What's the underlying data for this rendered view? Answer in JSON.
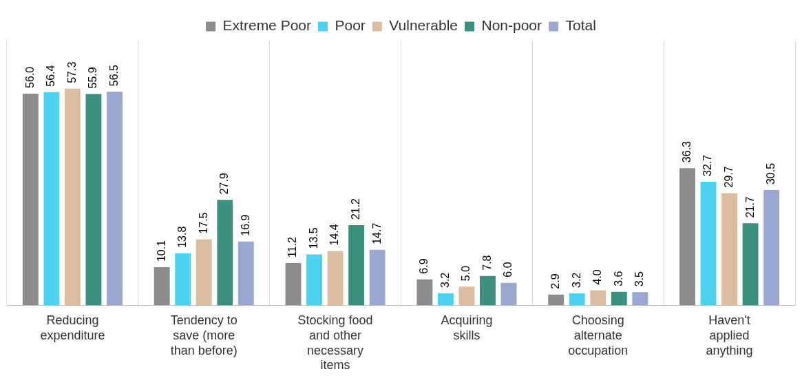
{
  "chart_data": {
    "type": "bar",
    "categories": [
      "Reducing expenditure",
      "Tendency to save (more than before)",
      "Stocking food and other necessary items",
      "Acquiring skills",
      "Choosing alternate occupation",
      "Haven't applied anything"
    ],
    "series": [
      {
        "name": "Extreme Poor",
        "color": "#8c8c8c",
        "values": [
          56.0,
          10.1,
          11.2,
          6.9,
          2.9,
          36.3
        ],
        "value_labels": [
          "56.0",
          "10.1",
          "11.2",
          "6.9",
          "2.9",
          "36.3"
        ]
      },
      {
        "name": "Poor",
        "color": "#4dd2f0",
        "values": [
          56.4,
          13.8,
          13.5,
          3.2,
          3.2,
          32.7
        ],
        "value_labels": [
          "56.4",
          "13.8",
          "13.5",
          "3.2",
          "3.2",
          "32.7"
        ]
      },
      {
        "name": "Vulnerable",
        "color": "#dbbd9f",
        "values": [
          57.3,
          17.5,
          14.4,
          5.0,
          4.0,
          29.7
        ],
        "value_labels": [
          "57.3",
          "17.5",
          "14.4",
          "5.0",
          "4.0",
          "29.7"
        ]
      },
      {
        "name": "Non-poor",
        "color": "#3d8f7f",
        "values": [
          55.9,
          27.9,
          21.2,
          7.8,
          3.6,
          21.7
        ],
        "value_labels": [
          "55.9",
          "27.9",
          "21.2",
          "7.8",
          "3.6",
          "21.7"
        ]
      },
      {
        "name": "Total",
        "color": "#9aa8d0",
        "values": [
          56.5,
          16.9,
          14.7,
          6.0,
          3.5,
          30.5
        ],
        "value_labels": [
          "56.5",
          "16.9",
          "14.7",
          "6.0",
          "3.5",
          "30.5"
        ]
      }
    ],
    "grid": "x",
    "legend": "top"
  }
}
